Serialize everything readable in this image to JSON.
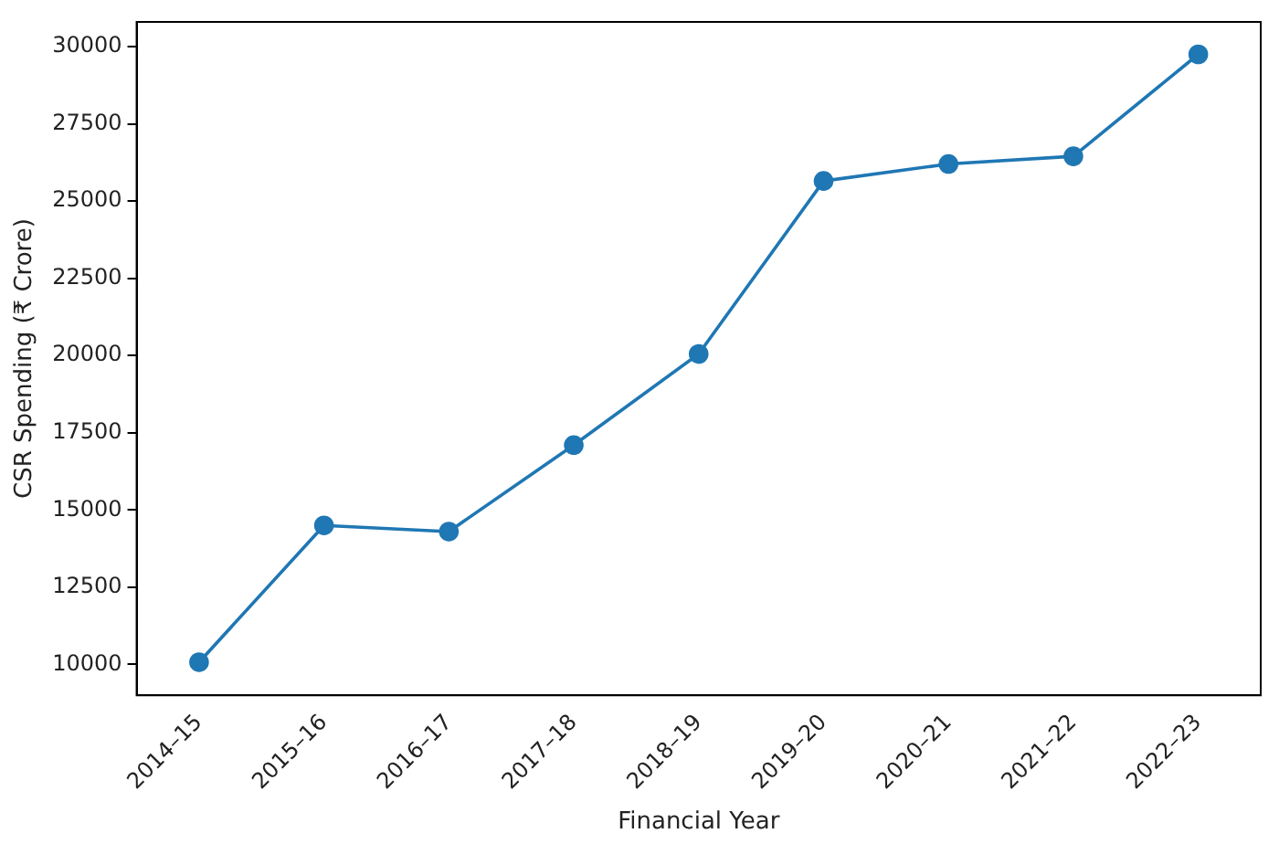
{
  "chart_data": {
    "type": "line",
    "xlabel": "Financial Year",
    "ylabel": "CSR Spending (₹ Crore)",
    "categories": [
      "2014–15",
      "2015–16",
      "2016–17",
      "2017–18",
      "2018–19",
      "2019–20",
      "2020–21",
      "2021–22",
      "2022–23"
    ],
    "series": [
      {
        "color": "#1f77b4",
        "values": [
          10070,
          14500,
          14300,
          17100,
          20050,
          25650,
          26200,
          26450,
          29750
        ]
      }
    ],
    "ylim": [
      9000,
      30800
    ],
    "yticks": [
      10000,
      12500,
      15000,
      17500,
      20000,
      22500,
      25000,
      27500,
      30000
    ],
    "grid": false,
    "legend": false,
    "marker": "circle",
    "line_style": "solid"
  }
}
